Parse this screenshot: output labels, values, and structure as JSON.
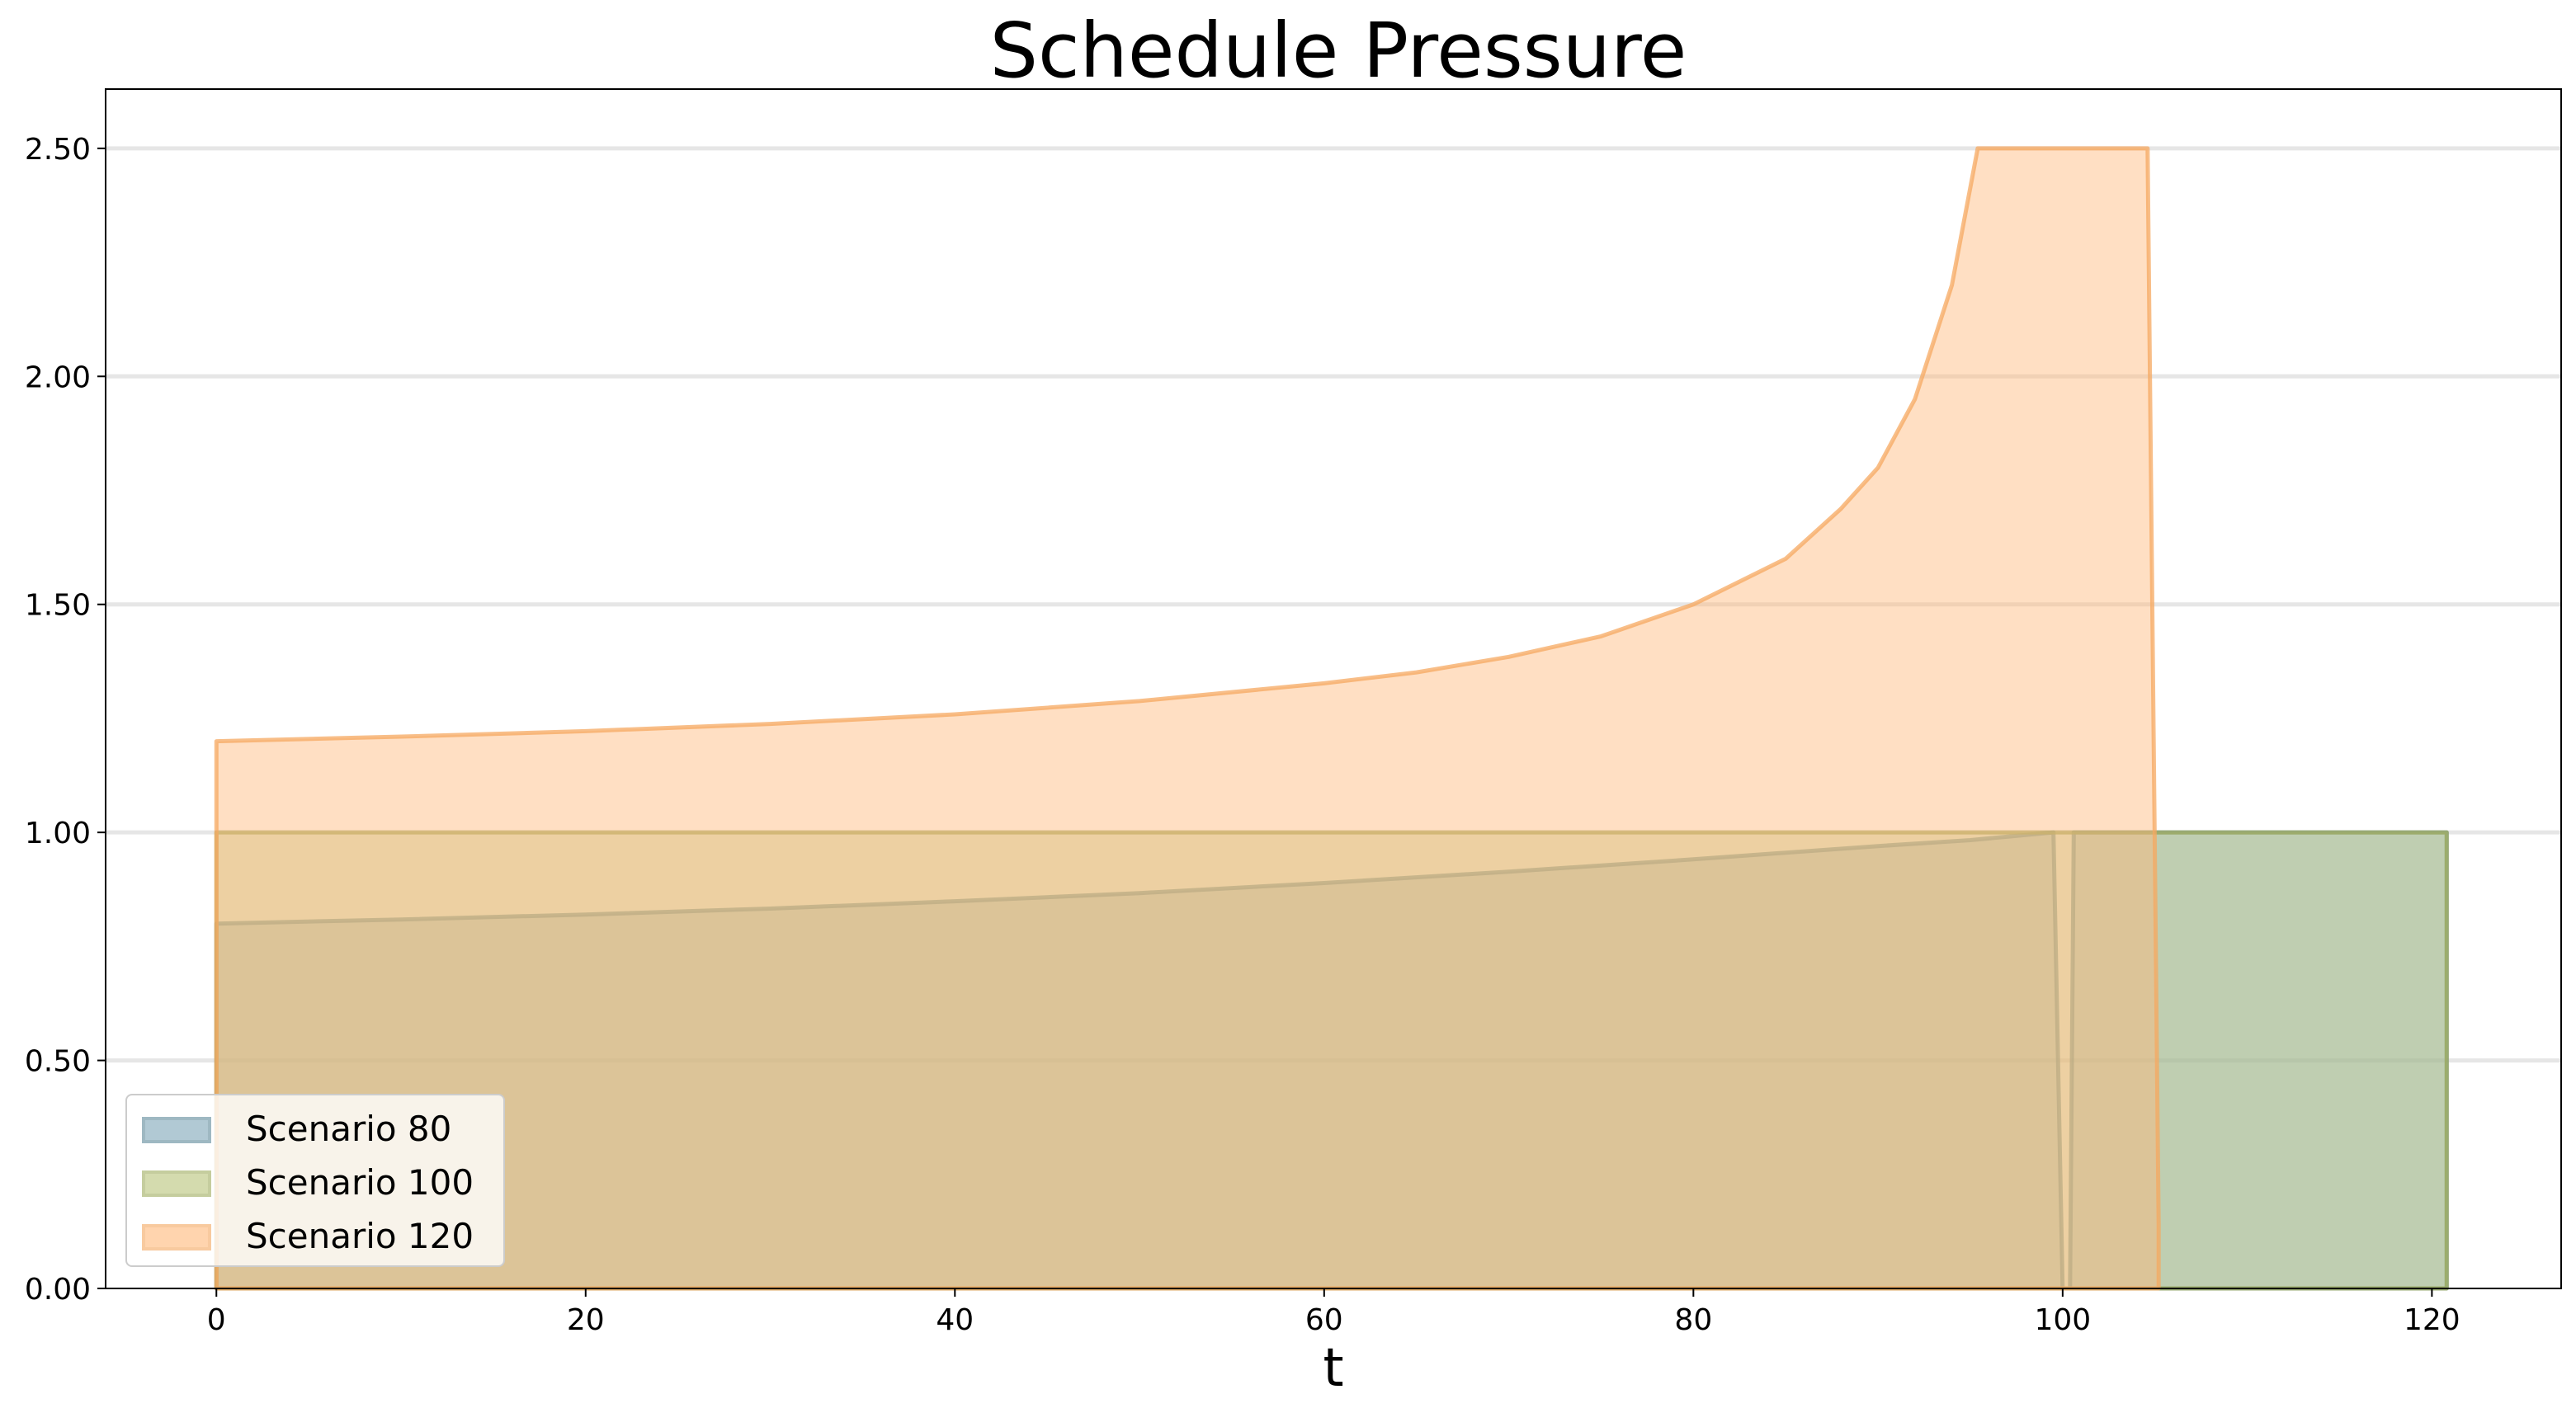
{
  "chart_data": {
    "type": "area",
    "title": "Schedule Pressure",
    "xlabel": "t",
    "ylabel": "",
    "xlim": [
      -6,
      127
    ],
    "ylim": [
      0,
      2.63
    ],
    "xticks": [
      "0",
      "20",
      "40",
      "60",
      "80",
      "100",
      "120"
    ],
    "yticks": [
      "0.00",
      "0.50",
      "1.00",
      "1.50",
      "2.00",
      "2.50"
    ],
    "grid": "horizontal",
    "legend_position": "lower-left",
    "series": [
      {
        "name": "Scenario 80",
        "color": "#7ea6b8",
        "edge_color": "#5e8a9b",
        "points": [
          [
            0,
            0
          ],
          [
            0,
            0.8
          ],
          [
            10,
            0.809
          ],
          [
            20,
            0.82
          ],
          [
            30,
            0.833
          ],
          [
            40,
            0.849
          ],
          [
            50,
            0.867
          ],
          [
            60,
            0.889
          ],
          [
            70,
            0.914
          ],
          [
            80,
            0.941
          ],
          [
            90,
            0.97
          ],
          [
            95,
            0.983
          ],
          [
            99.5,
            1.0
          ],
          [
            100,
            0
          ],
          [
            100.4,
            0
          ],
          [
            100.6,
            1.0
          ],
          [
            110,
            1.0
          ],
          [
            120.8,
            1.0
          ],
          [
            120.8,
            0
          ]
        ]
      },
      {
        "name": "Scenario 100",
        "color": "#b8c47a",
        "edge_color": "#a0ac5e",
        "points": [
          [
            0,
            0
          ],
          [
            0,
            1.0
          ],
          [
            120.8,
            1.0
          ],
          [
            120.8,
            0
          ]
        ]
      },
      {
        "name": "Scenario 120",
        "color": "#ffb97a",
        "edge_color": "#f5a860",
        "points": [
          [
            0,
            0
          ],
          [
            0,
            1.2
          ],
          [
            10,
            1.21
          ],
          [
            20,
            1.222
          ],
          [
            30,
            1.238
          ],
          [
            40,
            1.259
          ],
          [
            50,
            1.288
          ],
          [
            60,
            1.327
          ],
          [
            65,
            1.351
          ],
          [
            70,
            1.385
          ],
          [
            75,
            1.43
          ],
          [
            80,
            1.5
          ],
          [
            85,
            1.6
          ],
          [
            88,
            1.71
          ],
          [
            90,
            1.8
          ],
          [
            92,
            1.95
          ],
          [
            94,
            2.2
          ],
          [
            95.4,
            2.5
          ],
          [
            104.6,
            2.5
          ],
          [
            105.2,
            0.14
          ],
          [
            105.2,
            0
          ]
        ]
      }
    ]
  }
}
